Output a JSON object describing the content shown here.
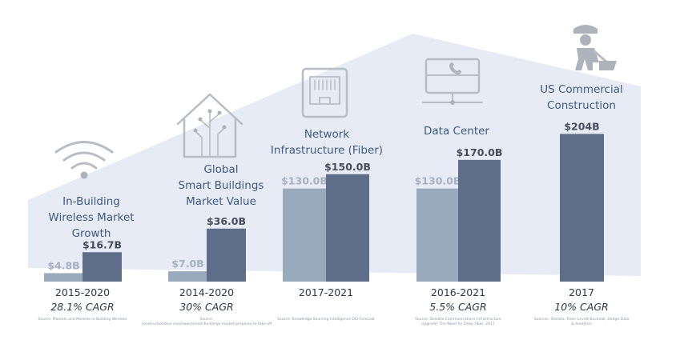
{
  "colors": {
    "background_band": "#e7ebf5",
    "bar_light": "#9aaabd",
    "bar_dark": "#5f6e88",
    "title": "#3f5a80",
    "icon": "#b0b4bc"
  },
  "chart_data": {
    "type": "bar",
    "title": "",
    "xlabel": "",
    "ylabel": "",
    "grid": false,
    "value_unit": "$B",
    "groups": [
      {
        "title": [
          "In-Building",
          "Wireless Market",
          "Growth"
        ],
        "icon": "wifi-icon",
        "period": "2015-2020",
        "cagr": "28.1% CAGR",
        "source": "Source: Markets and Markets In-Building Wireless",
        "bars": [
          {
            "value": 4.8,
            "label": "$4.8B",
            "shade": "light"
          },
          {
            "value": 16.7,
            "label": "$16.7B",
            "shade": "dark"
          }
        ]
      },
      {
        "title": [
          "Global",
          "Smart Buildings",
          "Market Value"
        ],
        "icon": "smart-home-icon",
        "period": "2014-2020",
        "cagr": "30% CAGR",
        "source": "Source: constructiondive.com/news/smart-buildings-market-prepares-to-take-off",
        "bars": [
          {
            "value": 7.0,
            "label": "$7.0B",
            "shade": "light"
          },
          {
            "value": 36.0,
            "label": "$36.0B",
            "shade": "dark"
          }
        ]
      },
      {
        "title": [
          "Network",
          "Infrastructure (Fiber)"
        ],
        "icon": "network-port-icon",
        "period": "2017-2021",
        "cagr": "",
        "source": "Source: Knowledge Sourcing Intelligence DCI Forecast",
        "bars": [
          {
            "value": 130.0,
            "label": "$130.0B",
            "shade": "light"
          },
          {
            "value": 150.0,
            "label": "$150.0B",
            "shade": "dark"
          }
        ]
      },
      {
        "title": [
          "Data Center"
        ],
        "icon": "data-center-icon",
        "period": "2016-2021",
        "cagr": "5.5% CAGR",
        "source": "Source: Deloitte Communications Infrastructure Upgrade: The Need for Deep Fiber, 2017",
        "bars": [
          {
            "value": 130.0,
            "label": "$130.0B",
            "shade": "light"
          },
          {
            "value": 170.0,
            "label": "$170.0B",
            "shade": "dark"
          }
        ]
      },
      {
        "title": [
          "US Commercial",
          "Construction"
        ],
        "icon": "construction-worker-icon",
        "period": "2017",
        "cagr": "10% CAGR",
        "source": "Sources: Statista, Rider Levett Bucknall, Dodge Data & Analytics",
        "bars": [
          {
            "value": 204.0,
            "label": "$204B",
            "shade": "dark"
          }
        ]
      }
    ]
  }
}
